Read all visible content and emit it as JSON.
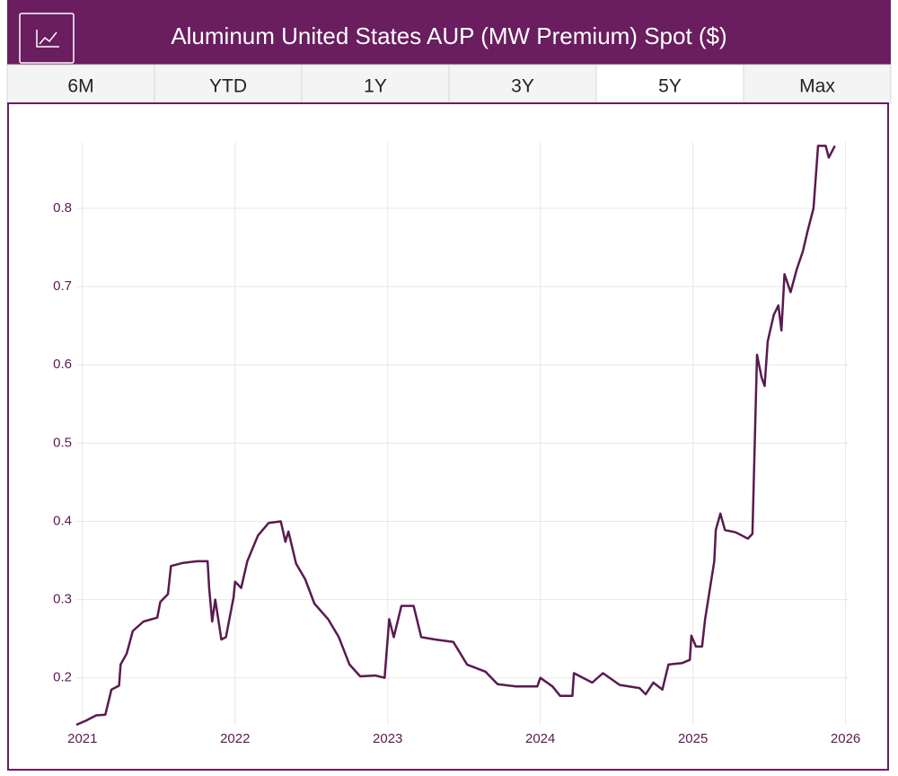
{
  "header": {
    "title": "Aluminum United States AUP (MW Premium) Spot ($)"
  },
  "tabs": [
    {
      "label": "6M"
    },
    {
      "label": "YTD"
    },
    {
      "label": "1Y"
    },
    {
      "label": "3Y"
    },
    {
      "label": "5Y",
      "selected": true
    },
    {
      "label": "Max"
    }
  ],
  "chart_data": {
    "type": "line",
    "color": "#5a1a4f",
    "x": [
      2020.96,
      2021.02,
      2021.09,
      2021.15,
      2021.19,
      2021.24,
      2021.25,
      2021.29,
      2021.33,
      2021.4,
      2021.49,
      2021.51,
      2021.56,
      2021.58,
      2021.66,
      2021.75,
      2021.82,
      2021.83,
      2021.85,
      2021.87,
      2021.91,
      2021.94,
      2021.99,
      2022.0,
      2022.04,
      2022.08,
      2022.15,
      2022.22,
      2022.3,
      2022.33,
      2022.35,
      2022.4,
      2022.46,
      2022.52,
      2022.61,
      2022.68,
      2022.75,
      2022.82,
      2022.92,
      2022.98,
      2023.01,
      2023.04,
      2023.09,
      2023.17,
      2023.22,
      2023.31,
      2023.43,
      2023.52,
      2023.64,
      2023.72,
      2023.84,
      2023.98,
      2024.0,
      2024.08,
      2024.13,
      2024.21,
      2024.22,
      2024.34,
      2024.41,
      2024.52,
      2024.65,
      2024.69,
      2024.74,
      2024.8,
      2024.84,
      2024.93,
      2024.98,
      2024.99,
      2025.02,
      2025.06,
      2025.08,
      2025.14,
      2025.15,
      2025.18,
      2025.21,
      2025.28,
      2025.36,
      2025.39,
      2025.42,
      2025.45,
      2025.47,
      2025.49,
      2025.53,
      2025.56,
      2025.58,
      2025.6,
      2025.64,
      2025.68,
      2025.72,
      2025.75,
      2025.79,
      2025.82,
      2025.87,
      2025.89,
      2025.93
    ],
    "values": [
      0.14,
      0.145,
      0.152,
      0.153,
      0.185,
      0.19,
      0.217,
      0.231,
      0.26,
      0.272,
      0.277,
      0.297,
      0.307,
      0.343,
      0.347,
      0.349,
      0.349,
      0.315,
      0.272,
      0.3,
      0.249,
      0.252,
      0.303,
      0.323,
      0.315,
      0.349,
      0.382,
      0.398,
      0.4,
      0.374,
      0.387,
      0.346,
      0.326,
      0.295,
      0.275,
      0.252,
      0.217,
      0.202,
      0.203,
      0.2,
      0.275,
      0.252,
      0.292,
      0.292,
      0.252,
      0.249,
      0.246,
      0.217,
      0.208,
      0.192,
      0.189,
      0.189,
      0.2,
      0.189,
      0.177,
      0.177,
      0.206,
      0.194,
      0.206,
      0.191,
      0.187,
      0.179,
      0.194,
      0.185,
      0.217,
      0.219,
      0.223,
      0.254,
      0.24,
      0.24,
      0.275,
      0.349,
      0.389,
      0.41,
      0.389,
      0.386,
      0.378,
      0.384,
      0.613,
      0.584,
      0.573,
      0.63,
      0.664,
      0.676,
      0.644,
      0.716,
      0.693,
      0.722,
      0.745,
      0.77,
      0.8,
      0.88,
      0.88,
      0.865,
      0.88
    ],
    "xlim": [
      2020.96,
      2026.02
    ],
    "ylim": [
      0.14,
      0.885
    ],
    "xticks": [
      2021,
      2022,
      2023,
      2024,
      2025,
      2026
    ],
    "yticks": [
      0.2,
      0.3,
      0.4,
      0.5,
      0.6,
      0.7,
      0.8
    ],
    "grid": true
  }
}
